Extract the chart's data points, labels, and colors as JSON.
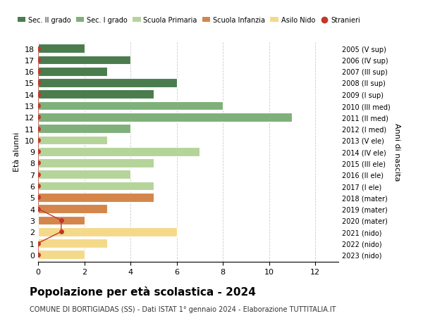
{
  "ages": [
    18,
    17,
    16,
    15,
    14,
    13,
    12,
    11,
    10,
    9,
    8,
    7,
    6,
    5,
    4,
    3,
    2,
    1,
    0
  ],
  "right_labels": [
    "2005 (V sup)",
    "2006 (IV sup)",
    "2007 (III sup)",
    "2008 (II sup)",
    "2009 (I sup)",
    "2010 (III med)",
    "2011 (II med)",
    "2012 (I med)",
    "2013 (V ele)",
    "2014 (IV ele)",
    "2015 (III ele)",
    "2016 (II ele)",
    "2017 (I ele)",
    "2018 (mater)",
    "2019 (mater)",
    "2020 (mater)",
    "2021 (nido)",
    "2022 (nido)",
    "2023 (nido)"
  ],
  "bar_values": [
    2,
    4,
    3,
    6,
    5,
    8,
    11,
    4,
    3,
    7,
    5,
    4,
    5,
    5,
    3,
    2,
    6,
    3,
    2
  ],
  "bar_colors": [
    "#4a7c4e",
    "#4a7c4e",
    "#4a7c4e",
    "#4a7c4e",
    "#4a7c4e",
    "#7fb07a",
    "#7fb07a",
    "#7fb07a",
    "#b5d49a",
    "#b5d49a",
    "#b5d49a",
    "#b5d49a",
    "#b5d49a",
    "#d4864a",
    "#d4864a",
    "#d4864a",
    "#f5d98a",
    "#f5d98a",
    "#f5d98a"
  ],
  "stranieri_values": [
    0,
    0,
    0,
    0,
    0,
    0,
    0,
    0,
    0,
    0,
    0,
    0,
    0,
    0,
    0,
    1,
    1,
    0,
    0
  ],
  "title_main": "Popolazione per età scolastica - 2024",
  "title_sub": "COMUNE DI BORTIGIADAS (SS) - Dati ISTAT 1° gennaio 2024 - Elaborazione TUTTITALIA.IT",
  "ylabel": "Età alunni",
  "ylabel_right": "Anni di nascita",
  "xlim": [
    0,
    13
  ],
  "xticks": [
    0,
    2,
    4,
    6,
    8,
    10,
    12
  ],
  "legend_labels": [
    "Sec. II grado",
    "Sec. I grado",
    "Scuola Primaria",
    "Scuola Infanzia",
    "Asilo Nido",
    "Stranieri"
  ],
  "legend_colors": [
    "#4a7c4e",
    "#7fb07a",
    "#b5d49a",
    "#d4864a",
    "#f5d98a",
    "#c0392b"
  ],
  "bg_color": "#ffffff",
  "grid_color": "#cccccc",
  "bar_height": 0.78,
  "stranieri_color": "#c0392b"
}
